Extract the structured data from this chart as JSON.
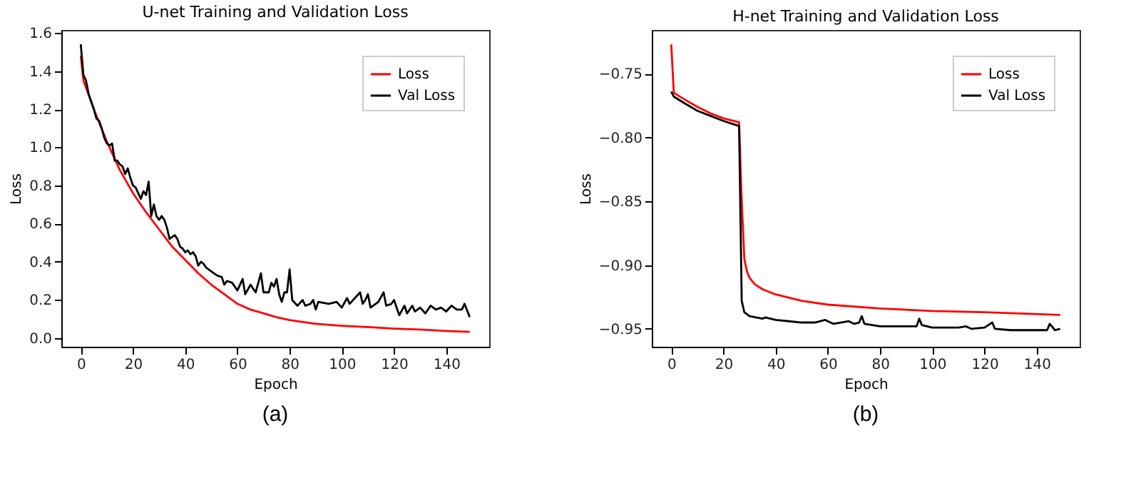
{
  "chart_data": [
    {
      "type": "line",
      "title": "U-net Training and Validation Loss",
      "xlabel": "Epoch",
      "ylabel": "Loss",
      "annotations": [
        "(a)"
      ],
      "xlim": [
        -7.45,
        156.45
      ],
      "xticks": [
        0,
        20,
        40,
        60,
        80,
        100,
        120,
        140
      ],
      "ylim": [
        -0.045,
        1.615
      ],
      "yticks": [
        {
          "value": 0,
          "label": "0.0"
        },
        0.2,
        0.4,
        0.6,
        0.8,
        {
          "value": 1,
          "label": "1.0"
        },
        1.2,
        1.4,
        1.6
      ],
      "grid": false,
      "legend": "top right",
      "marker": "none",
      "line_style": "solid",
      "series": [
        {
          "name": "Loss",
          "color": "#ff0000",
          "x": [
            0,
            1,
            5,
            10,
            15,
            20,
            25,
            30,
            35,
            40,
            45,
            50,
            55,
            60,
            65,
            70,
            75,
            80,
            90,
            100,
            110,
            120,
            130,
            140,
            149
          ],
          "values": [
            1.48,
            1.35,
            1.2,
            1.03,
            0.88,
            0.76,
            0.66,
            0.57,
            0.48,
            0.41,
            0.34,
            0.28,
            0.23,
            0.18,
            0.15,
            0.13,
            0.11,
            0.095,
            0.075,
            0.065,
            0.058,
            0.05,
            0.045,
            0.038,
            0.033
          ]
        },
        {
          "name": "Val Loss",
          "color": "#000000",
          "x": [
            0,
            1,
            2,
            3,
            4,
            5,
            6,
            7,
            8,
            9,
            10,
            11,
            12,
            13,
            14,
            15,
            16,
            17,
            18,
            19,
            20,
            21,
            22,
            23,
            24,
            25,
            26,
            27,
            28,
            29,
            30,
            31,
            32,
            33,
            34,
            35,
            36,
            37,
            38,
            39,
            40,
            41,
            42,
            43,
            44,
            45,
            46,
            47,
            48,
            49,
            50,
            52,
            54,
            55,
            56,
            58,
            60,
            62,
            63,
            65,
            66,
            67,
            69,
            70,
            72,
            73,
            74,
            75,
            76,
            77,
            78,
            79,
            80,
            81,
            83,
            85,
            86,
            88,
            89,
            90,
            91,
            95,
            98,
            100,
            102,
            103,
            105,
            107,
            108,
            109,
            110,
            111,
            114,
            116,
            117,
            119,
            120,
            122,
            124,
            125,
            127,
            128,
            130,
            132,
            134,
            136,
            138,
            140,
            142,
            144,
            146,
            147,
            149
          ],
          "values": [
            1.54,
            1.38,
            1.35,
            1.28,
            1.24,
            1.2,
            1.15,
            1.14,
            1.1,
            1.05,
            1.02,
            1.01,
            1.02,
            0.93,
            0.93,
            0.91,
            0.9,
            0.86,
            0.89,
            0.84,
            0.8,
            0.79,
            0.76,
            0.73,
            0.77,
            0.75,
            0.82,
            0.64,
            0.7,
            0.64,
            0.62,
            0.64,
            0.62,
            0.58,
            0.52,
            0.53,
            0.54,
            0.52,
            0.48,
            0.47,
            0.45,
            0.46,
            0.44,
            0.45,
            0.43,
            0.38,
            0.4,
            0.39,
            0.37,
            0.36,
            0.35,
            0.33,
            0.32,
            0.28,
            0.3,
            0.29,
            0.25,
            0.31,
            0.23,
            0.28,
            0.26,
            0.24,
            0.34,
            0.24,
            0.24,
            0.29,
            0.27,
            0.31,
            0.23,
            0.19,
            0.24,
            0.24,
            0.36,
            0.2,
            0.17,
            0.2,
            0.17,
            0.18,
            0.2,
            0.15,
            0.19,
            0.18,
            0.19,
            0.16,
            0.21,
            0.18,
            0.21,
            0.24,
            0.18,
            0.2,
            0.23,
            0.16,
            0.19,
            0.24,
            0.17,
            0.18,
            0.2,
            0.12,
            0.17,
            0.13,
            0.17,
            0.14,
            0.16,
            0.13,
            0.17,
            0.15,
            0.16,
            0.14,
            0.17,
            0.15,
            0.15,
            0.18,
            0.11
          ]
        }
      ]
    },
    {
      "type": "line",
      "title": "H-net Training and Validation Loss",
      "xlabel": "Epoch",
      "ylabel": "Loss",
      "annotations": [
        "(b)"
      ],
      "xlim": [
        -7.45,
        156.45
      ],
      "xticks": [
        0,
        20,
        40,
        60,
        80,
        100,
        120,
        140
      ],
      "ylim": [
        -0.964,
        -0.7157
      ],
      "yticks": [
        {
          "value": -0.95,
          "label": "−0.95"
        },
        {
          "value": -0.9,
          "label": "−0.90"
        },
        {
          "value": -0.85,
          "label": "−0.85"
        },
        {
          "value": -0.8,
          "label": "−0.80"
        },
        {
          "value": -0.75,
          "label": "−0.75"
        }
      ],
      "grid": false,
      "legend": "top right",
      "marker": "none",
      "line_style": "solid",
      "series": [
        {
          "name": "Loss",
          "color": "#ff0000",
          "x": [
            0,
            1,
            5,
            10,
            15,
            20,
            26,
            27,
            28,
            29,
            30,
            32,
            35,
            40,
            50,
            60,
            80,
            100,
            120,
            149
          ],
          "values": [
            -0.727,
            -0.765,
            -0.77,
            -0.776,
            -0.781,
            -0.785,
            -0.788,
            -0.85,
            -0.895,
            -0.905,
            -0.91,
            -0.915,
            -0.919,
            -0.923,
            -0.928,
            -0.931,
            -0.934,
            -0.936,
            -0.937,
            -0.939
          ]
        },
        {
          "name": "Val Loss",
          "color": "#000000",
          "x": [
            0,
            1,
            5,
            10,
            15,
            20,
            26,
            27,
            28,
            30,
            35,
            36,
            40,
            45,
            50,
            55,
            59,
            62,
            65,
            68,
            70,
            72,
            73,
            74,
            80,
            85,
            90,
            94,
            95,
            96,
            100,
            105,
            110,
            113,
            115,
            120,
            123,
            124,
            130,
            135,
            140,
            144,
            145,
            147,
            149
          ],
          "values": [
            -0.764,
            -0.768,
            -0.773,
            -0.779,
            -0.783,
            -0.787,
            -0.791,
            -0.928,
            -0.937,
            -0.94,
            -0.942,
            -0.941,
            -0.943,
            -0.944,
            -0.945,
            -0.945,
            -0.943,
            -0.946,
            -0.945,
            -0.944,
            -0.946,
            -0.945,
            -0.94,
            -0.946,
            -0.948,
            -0.948,
            -0.948,
            -0.948,
            -0.942,
            -0.947,
            -0.949,
            -0.949,
            -0.949,
            -0.948,
            -0.95,
            -0.949,
            -0.945,
            -0.95,
            -0.951,
            -0.951,
            -0.951,
            -0.951,
            -0.946,
            -0.951,
            -0.95
          ]
        }
      ]
    }
  ]
}
